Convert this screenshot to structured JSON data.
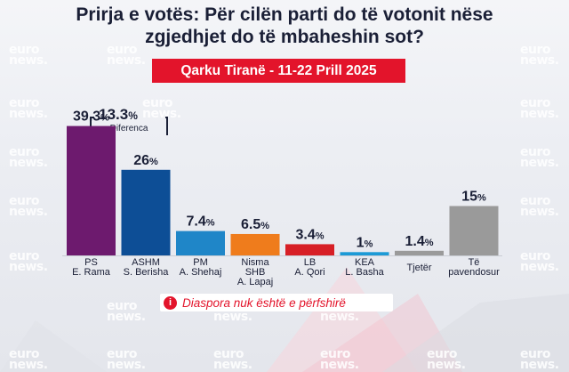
{
  "title_line1": "Prirja e votës: Për cilën parti do të votonit nëse",
  "title_line2": "zgjedhjet do të mbaheshin sot?",
  "subtitle": "Qarku Tiranë - 11-22 Prill 2025",
  "watermark": "euro\nnews.",
  "difference": {
    "value": "13.3",
    "unit": "%",
    "label": "Diferenca"
  },
  "note": "Diaspora nuk është e përfshirë",
  "colors": {
    "accent_red": "#e3142b",
    "title": "#1a1f36"
  },
  "chart_data": {
    "type": "bar",
    "ylim": [
      0,
      40
    ],
    "categories": [
      {
        "line1": "PS",
        "line2": "E. Rama",
        "line3": ""
      },
      {
        "line1": "ASHM",
        "line2": "S. Berisha",
        "line3": ""
      },
      {
        "line1": "PM",
        "line2": "A. Shehaj",
        "line3": ""
      },
      {
        "line1": "Nisma",
        "line2": "SHB",
        "line3": "A. Lapaj"
      },
      {
        "line1": "LB",
        "line2": "A. Qori",
        "line3": ""
      },
      {
        "line1": "KEA",
        "line2": "L. Basha",
        "line3": ""
      },
      {
        "line1": "Tjetër",
        "line2": "",
        "line3": ""
      },
      {
        "line1": "Të",
        "line2": "pavendosur",
        "line3": ""
      }
    ],
    "values": [
      39.3,
      26,
      7.4,
      6.5,
      3.4,
      1,
      1.4,
      15
    ],
    "value_labels": [
      "39.3",
      "26",
      "7.4",
      "6.5",
      "3.4",
      "1",
      "1.4",
      "15"
    ],
    "unit": "%",
    "colors": [
      "#6d1a6e",
      "#0d4e96",
      "#1f86c8",
      "#ef7c1c",
      "#d71f26",
      "#1c9ad6",
      "#9a9a9a",
      "#9a9a9a"
    ]
  }
}
